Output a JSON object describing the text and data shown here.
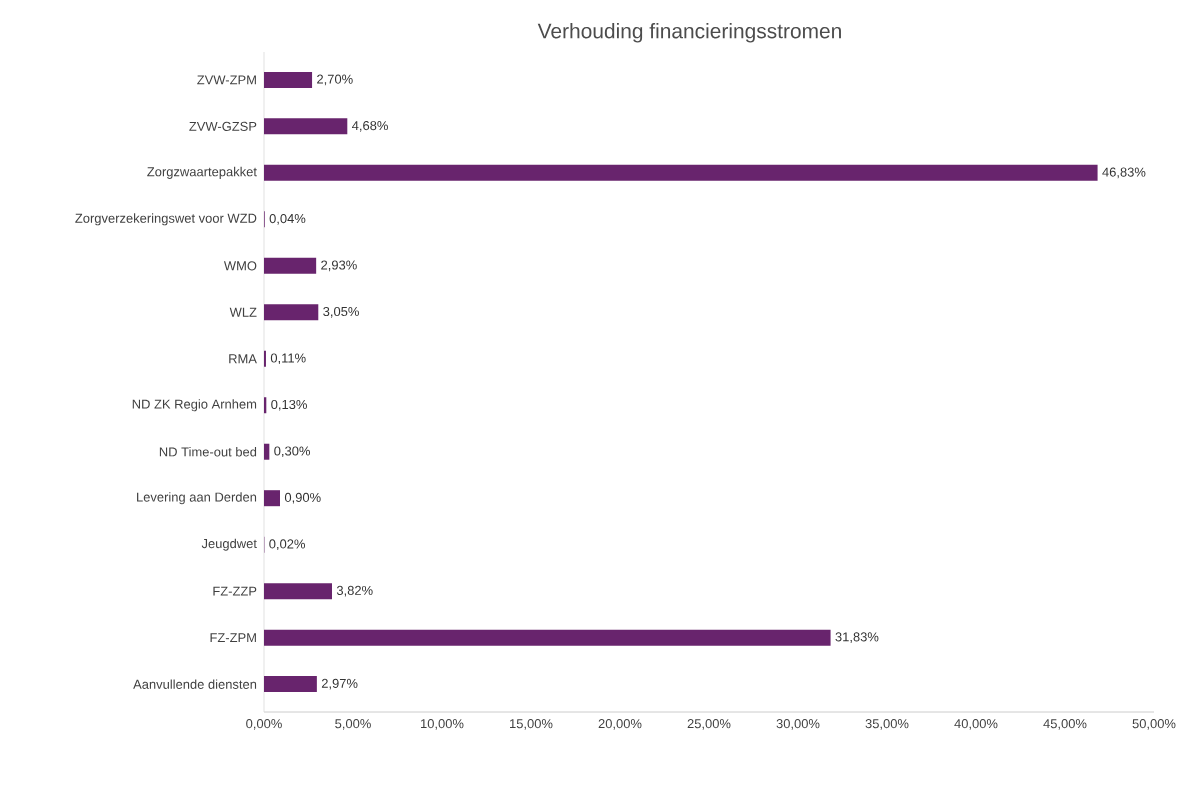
{
  "chart_data": {
    "type": "bar",
    "orientation": "horizontal",
    "title": "Verhouding financieringsstromen",
    "categories": [
      "ZVW-ZPM",
      "ZVW-GZSP",
      "Zorgzwaartepakket",
      "Zorgverzekeringswet voor WZD",
      "WMO",
      "WLZ",
      "RMA",
      "ND ZK Regio Arnhem",
      "ND Time-out bed",
      "Levering aan Derden",
      "Jeugdwet",
      "FZ-ZZP",
      "FZ-ZPM",
      "Aanvullende diensten"
    ],
    "values": [
      2.7,
      4.68,
      46.83,
      0.04,
      2.93,
      3.05,
      0.11,
      0.13,
      0.3,
      0.9,
      0.02,
      3.82,
      31.83,
      2.97
    ],
    "value_labels": [
      "2,70%",
      "4,68%",
      "46,83%",
      "0,04%",
      "2,93%",
      "3,05%",
      "0,11%",
      "0,13%",
      "0,30%",
      "0,90%",
      "0,02%",
      "3,82%",
      "31,83%",
      "2,97%"
    ],
    "color": "#68246d",
    "xlim": [
      0,
      50
    ],
    "xticks": [
      {
        "value": 0,
        "label": "0,00%"
      },
      {
        "value": 5,
        "label": "5,00%"
      },
      {
        "value": 10,
        "label": "10,00%"
      },
      {
        "value": 15,
        "label": "15,00%"
      },
      {
        "value": 20,
        "label": "20,00%"
      },
      {
        "value": 25,
        "label": "25,00%"
      },
      {
        "value": 30,
        "label": "30,00%"
      },
      {
        "value": 35,
        "label": "35,00%"
      },
      {
        "value": 40,
        "label": "40,00%"
      },
      {
        "value": 45,
        "label": "45,00%"
      },
      {
        "value": 50,
        "label": "50,00%"
      }
    ]
  }
}
